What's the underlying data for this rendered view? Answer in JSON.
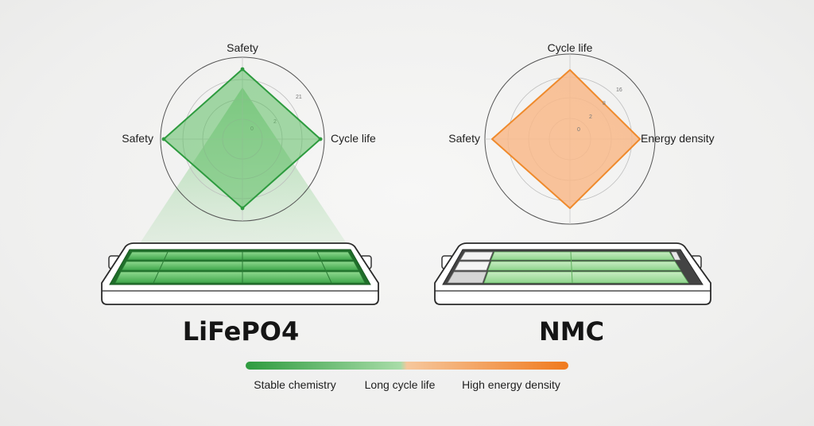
{
  "lifepo4": {
    "title": "LiFePO4",
    "color": "#2e9b3f",
    "fill": "#5cbd63",
    "axes": {
      "top": "Safety",
      "left": "Safety",
      "right": "Cycle life"
    },
    "ticks": [
      "0",
      "2",
      "21"
    ]
  },
  "nmc": {
    "title": "NMC",
    "color": "#ef8a2c",
    "fill": "#f8b98a",
    "axes": {
      "top": "Cycle life",
      "left": "Safety",
      "right": "Energy density"
    },
    "ticks": [
      "0",
      "2",
      "8",
      "16"
    ]
  },
  "legend": {
    "gradient_colors": [
      "#2e9b3f",
      "#a8dca8",
      "#f6c79c",
      "#f07a1e"
    ],
    "labels": [
      "Stable chemistry",
      "Long cycle life",
      "High energy density"
    ]
  }
}
